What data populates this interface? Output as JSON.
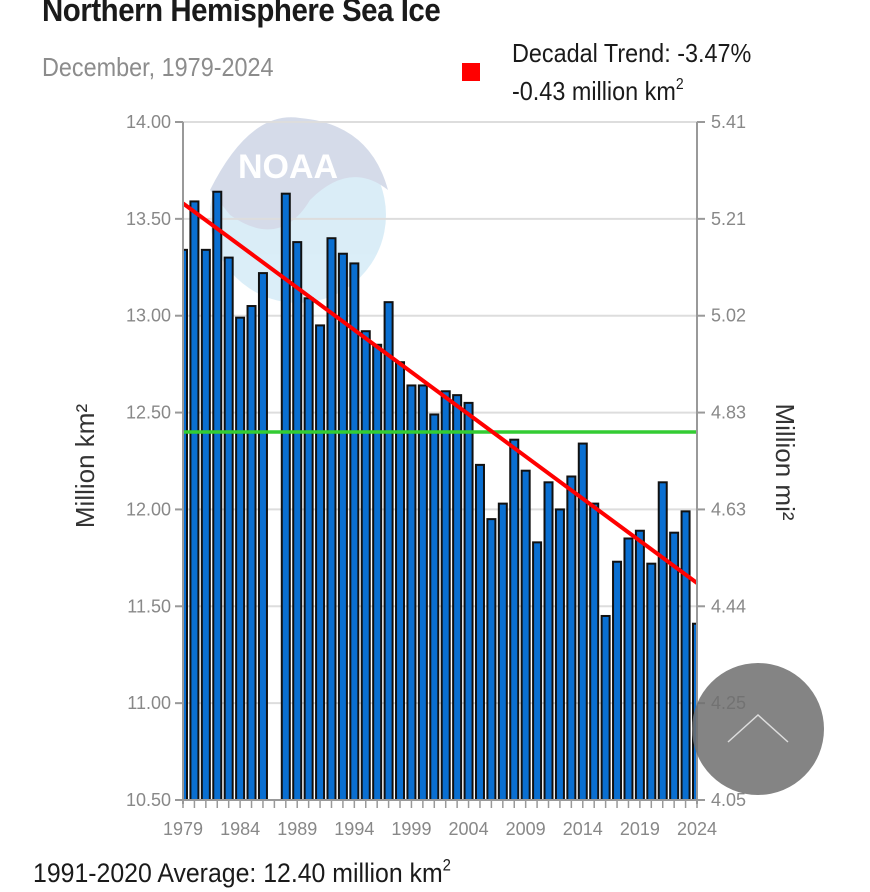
{
  "header": {
    "title": "Northern Hemisphere Sea Ice",
    "subtitle": "December, 1979-2024"
  },
  "legend": {
    "trend_line1": "Decadal Trend: -3.47%",
    "trend_line2_prefix": "-0.43 million km",
    "trend_line2_sup": "2",
    "trend_color": "#ff0000"
  },
  "footer": {
    "average_prefix": "1991-2020 Average: 12.40 million km",
    "average_sup": "2"
  },
  "watermark": "NOAA",
  "scroll_button": {
    "icon": "chevron-up-icon"
  },
  "chart_data": {
    "type": "bar",
    "title": "Northern Hemisphere Sea Ice",
    "subtitle": "December, 1979-2024",
    "xlabel": "",
    "ylabel": "Million km²",
    "y2label": "Million mi²",
    "ylim": [
      10.5,
      14.0
    ],
    "y2lim": [
      4.05,
      5.41
    ],
    "yticks": [
      "14.00",
      "13.50",
      "13.00",
      "12.50",
      "12.00",
      "11.50",
      "11.00",
      "10.50"
    ],
    "y2ticks": [
      "5.41",
      "5.21",
      "5.02",
      "4.83",
      "4.63",
      "4.44",
      "4.25",
      "4.05"
    ],
    "xtick_labels": [
      "1979",
      "1984",
      "1989",
      "1994",
      "1999",
      "2004",
      "2009",
      "2014",
      "2019",
      "2024"
    ],
    "grid": true,
    "legend_position": "top-right",
    "bar_color": "#0a6fd1",
    "bar_edge_color": "#111111",
    "categories": [
      1979,
      1980,
      1981,
      1982,
      1983,
      1984,
      1985,
      1986,
      1987,
      1988,
      1989,
      1990,
      1991,
      1992,
      1993,
      1994,
      1995,
      1996,
      1997,
      1998,
      1999,
      2000,
      2001,
      2002,
      2003,
      2004,
      2005,
      2006,
      2007,
      2008,
      2009,
      2010,
      2011,
      2012,
      2013,
      2014,
      2015,
      2016,
      2017,
      2018,
      2019,
      2020,
      2021,
      2022,
      2023,
      2024
    ],
    "values": [
      13.34,
      13.59,
      13.34,
      13.64,
      13.3,
      12.99,
      13.05,
      13.22,
      null,
      13.63,
      13.38,
      13.09,
      12.95,
      13.4,
      13.32,
      13.27,
      12.92,
      12.85,
      13.07,
      12.76,
      12.64,
      12.64,
      12.49,
      12.61,
      12.59,
      12.55,
      12.23,
      11.95,
      12.03,
      12.36,
      12.2,
      11.83,
      12.14,
      12.0,
      12.17,
      12.34,
      12.03,
      11.45,
      11.73,
      11.85,
      11.89,
      11.72,
      12.14,
      11.88,
      11.99,
      11.41
    ],
    "trend_line": {
      "name": "Decadal Trend",
      "color": "#ff0000",
      "start": [
        1979,
        13.58
      ],
      "end": [
        2024,
        11.62
      ]
    },
    "average_line": {
      "name": "1991-2020 Average",
      "color": "#33cc33",
      "value": 12.4
    }
  }
}
